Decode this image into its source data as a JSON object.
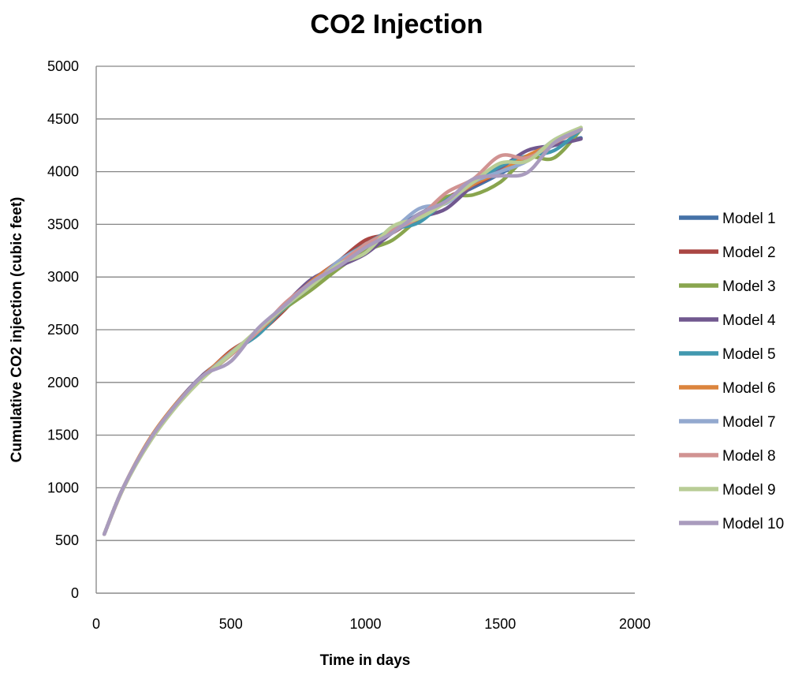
{
  "chart_data": {
    "type": "line",
    "title": "CO2 Injection",
    "xlabel": "Time in days",
    "ylabel": "Cumulative CO2 injection (cubic feet)",
    "xlim": [
      0,
      2000
    ],
    "ylim": [
      0,
      5000
    ],
    "x_ticks": [
      "0",
      "500",
      "1000",
      "1500",
      "2000"
    ],
    "y_ticks": [
      "0",
      "500",
      "1000",
      "1500",
      "2000",
      "2500",
      "3000",
      "3500",
      "4000",
      "4500",
      "5000"
    ],
    "grid": "horizontal",
    "legend_position": "right",
    "x": [
      30,
      100,
      200,
      300,
      400,
      500,
      600,
      700,
      800,
      900,
      1000,
      1100,
      1200,
      1300,
      1400,
      1500,
      1600,
      1700,
      1800
    ],
    "series": [
      {
        "name": "Model 1",
        "color": "#4572A7",
        "values": [
          560,
          1000,
          1460,
          1800,
          2070,
          2280,
          2470,
          2700,
          2920,
          3120,
          3300,
          3450,
          3600,
          3730,
          3850,
          3980,
          4120,
          4250,
          4320
        ]
      },
      {
        "name": "Model 2",
        "color": "#AA4643",
        "values": [
          560,
          990,
          1450,
          1790,
          2060,
          2300,
          2460,
          2690,
          2960,
          3150,
          3350,
          3420,
          3590,
          3750,
          3870,
          4000,
          4130,
          4280,
          4400
        ]
      },
      {
        "name": "Model 3",
        "color": "#89A54E",
        "values": [
          560,
          1000,
          1440,
          1780,
          2050,
          2260,
          2480,
          2700,
          2880,
          3080,
          3250,
          3350,
          3560,
          3760,
          3780,
          3900,
          4130,
          4130,
          4400
        ]
      },
      {
        "name": "Model 4",
        "color": "#71588F",
        "values": [
          560,
          1000,
          1460,
          1810,
          2080,
          2270,
          2500,
          2740,
          2980,
          3100,
          3220,
          3420,
          3560,
          3650,
          3870,
          4030,
          4200,
          4250,
          4310
        ]
      },
      {
        "name": "Model 5",
        "color": "#4198AF",
        "values": [
          560,
          1000,
          1450,
          1790,
          2060,
          2280,
          2450,
          2710,
          2930,
          3150,
          3310,
          3450,
          3520,
          3730,
          3880,
          4050,
          4150,
          4200,
          4400
        ]
      },
      {
        "name": "Model 6",
        "color": "#DB843D",
        "values": [
          560,
          1000,
          1470,
          1810,
          2070,
          2290,
          2480,
          2720,
          2960,
          3140,
          3290,
          3440,
          3560,
          3720,
          3880,
          4000,
          4150,
          4270,
          4410
        ]
      },
      {
        "name": "Model 7",
        "color": "#93A9CF",
        "values": [
          560,
          1000,
          1460,
          1800,
          2060,
          2280,
          2490,
          2720,
          2920,
          3150,
          3300,
          3450,
          3650,
          3700,
          3900,
          4000,
          4100,
          4300,
          4410
        ]
      },
      {
        "name": "Model 8",
        "color": "#D19392",
        "values": [
          560,
          1000,
          1460,
          1800,
          2060,
          2260,
          2480,
          2750,
          2950,
          3120,
          3310,
          3440,
          3570,
          3800,
          3930,
          4150,
          4130,
          4270,
          4400
        ]
      },
      {
        "name": "Model 9",
        "color": "#B9CD96",
        "values": [
          560,
          990,
          1440,
          1780,
          2050,
          2270,
          2500,
          2720,
          2920,
          3120,
          3230,
          3480,
          3560,
          3710,
          3900,
          4080,
          4100,
          4300,
          4420
        ]
      },
      {
        "name": "Model 10",
        "color": "#A99BBD",
        "values": [
          560,
          1000,
          1460,
          1800,
          2070,
          2200,
          2510,
          2730,
          2950,
          3100,
          3280,
          3420,
          3600,
          3720,
          3930,
          3960,
          3990,
          4270,
          4400
        ]
      }
    ]
  }
}
